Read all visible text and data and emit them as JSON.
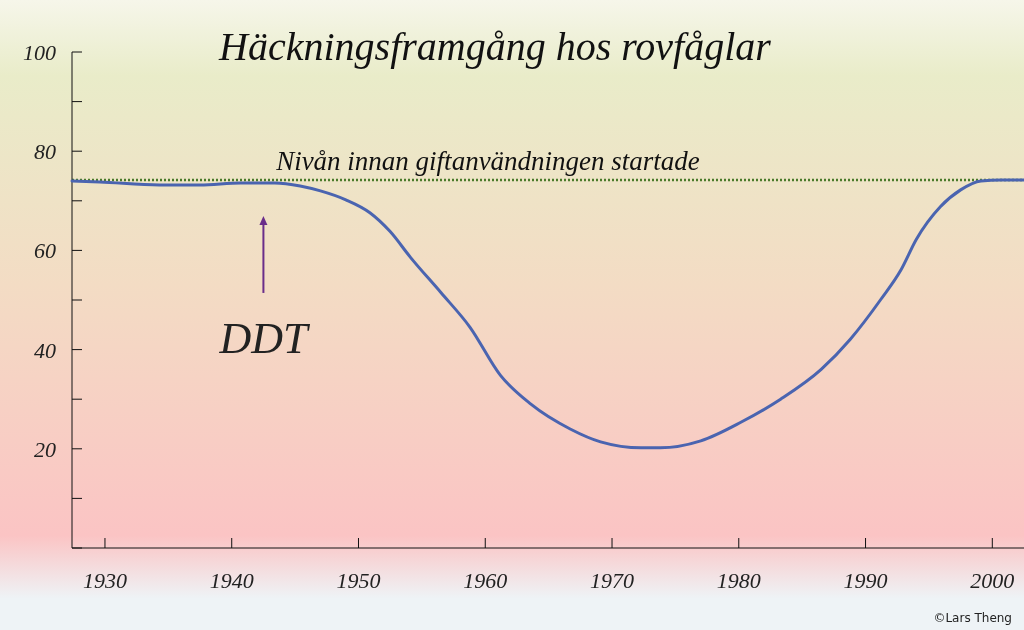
{
  "chart_data": {
    "type": "line",
    "title": "Häckningsframgång hos rovfåglar",
    "x": [
      1927.4,
      1929.6,
      1934.3,
      1937.5,
      1940.7,
      1943.4,
      1945.4,
      1947,
      1949,
      1950.9,
      1952.5,
      1954.1,
      1956.5,
      1958.8,
      1961.2,
      1963.6,
      1966.7,
      1969.1,
      1972.3,
      1973.8,
      1977,
      1980.2,
      1983.3,
      1986.5,
      1988.8,
      1991.2,
      1992.8,
      1994,
      1995.9,
      1997.5,
      1999.1,
      2000.7,
      2002.5
    ],
    "series": [
      {
        "color": "#4a64b0",
        "values": [
          74,
          73.8,
          73.2,
          73.2,
          73.6,
          73.6,
          73,
          72,
          70.2,
          67.6,
          63.8,
          58.6,
          51.5,
          44.5,
          34.8,
          29,
          24,
          21.4,
          20.2,
          20.2,
          21.6,
          25.4,
          30,
          36,
          42.1,
          50.1,
          56.1,
          62.2,
          68.8,
          72.2,
          74,
          74.2,
          74.2
        ]
      }
    ],
    "xlim": [
      1927.4,
      2002.5
    ],
    "xticks": [
      1930,
      1940,
      1950,
      1960,
      1970,
      1980,
      1990,
      2000
    ],
    "ylim": [
      0,
      100
    ],
    "yticks": [
      {
        "value": 0,
        "label": null
      },
      {
        "value": 10,
        "label": null
      },
      20,
      {
        "value": 30,
        "label": null
      },
      40,
      {
        "value": 50,
        "label": null
      },
      60,
      {
        "value": 70,
        "label": null
      },
      80,
      {
        "value": 90,
        "label": null
      },
      100
    ],
    "grid": false,
    "marker": "none",
    "line_style": "solid",
    "ref_lines": [
      {
        "axis": "y",
        "value": 74.2,
        "label": "Nivån innan giftanvändningen startade",
        "color": "#4a7a2a",
        "line_style": "dotted"
      }
    ],
    "annotations": [
      {
        "text": "DDT",
        "x": 1942.5,
        "y": 73.6
      },
      "©Lars Theng"
    ]
  }
}
